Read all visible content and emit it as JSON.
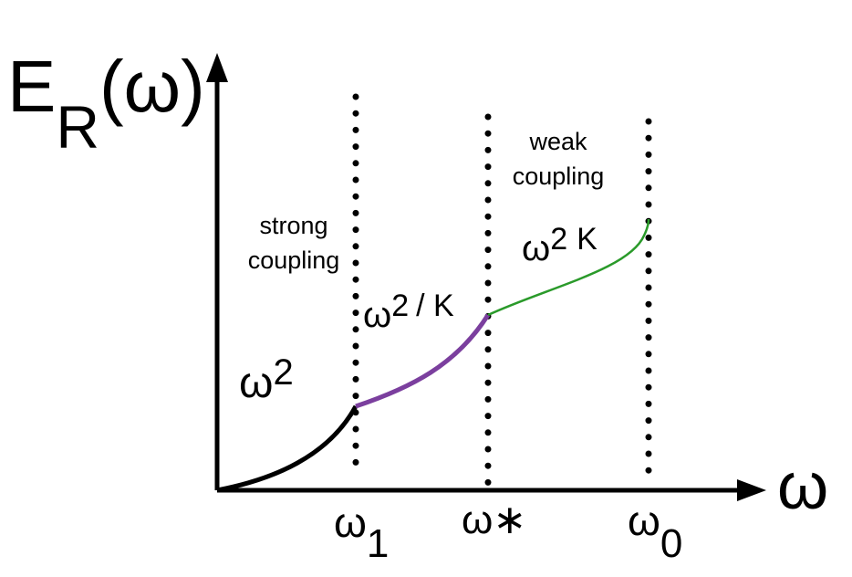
{
  "y_axis_label": {
    "main": "E",
    "sub": "R",
    "rest": "(ω)"
  },
  "x_axis_label": "ω",
  "markers": [
    {
      "symbol": "ω",
      "sub": "1"
    },
    {
      "symbol": "ω∗"
    },
    {
      "symbol": "ω",
      "sub": "0"
    }
  ],
  "regions": [
    {
      "lines": [
        "strong",
        "coupling"
      ]
    },
    {
      "lines": [
        "weak",
        "coupling"
      ]
    }
  ],
  "curve_labels": [
    {
      "base": "ω",
      "sup": "2"
    },
    {
      "base": "ω",
      "sup": "2",
      "rest": "/ K"
    },
    {
      "base": "ω",
      "sup": "2",
      "rest": "K"
    }
  ]
}
